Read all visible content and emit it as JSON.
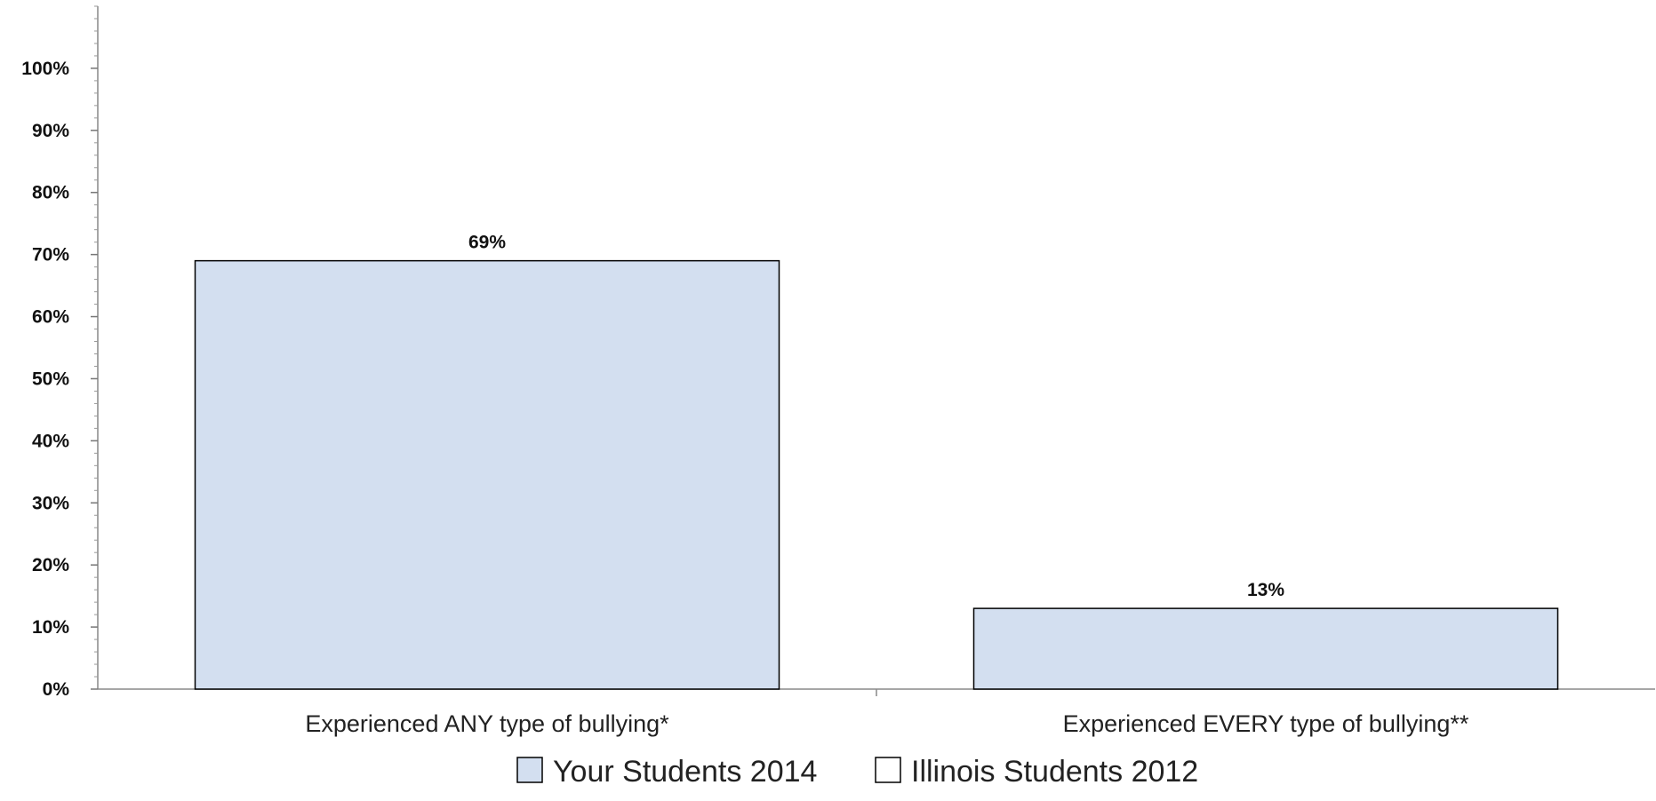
{
  "chart_data": {
    "type": "bar",
    "categories": [
      "Experienced ANY type of bullying*",
      "Experienced EVERY type of bullying**"
    ],
    "series": [
      {
        "name": "Your Students 2014",
        "values": [
          69,
          13
        ],
        "labels": [
          "69%",
          "13%"
        ],
        "color": "#d3dff0"
      },
      {
        "name": "Illinois Students 2012",
        "values": [
          null,
          null
        ],
        "labels": [
          "",
          ""
        ],
        "color": "#ffffff"
      }
    ],
    "ylim": [
      0,
      110
    ],
    "yticks": [
      0,
      10,
      20,
      30,
      40,
      50,
      60,
      70,
      80,
      90,
      100
    ],
    "ytick_labels": [
      "0%",
      "10%",
      "20%",
      "30%",
      "40%",
      "50%",
      "60%",
      "70%",
      "80%",
      "90%",
      "100%"
    ],
    "title": "",
    "xlabel": "",
    "ylabel": "",
    "grid": false,
    "legend": "bottom"
  }
}
